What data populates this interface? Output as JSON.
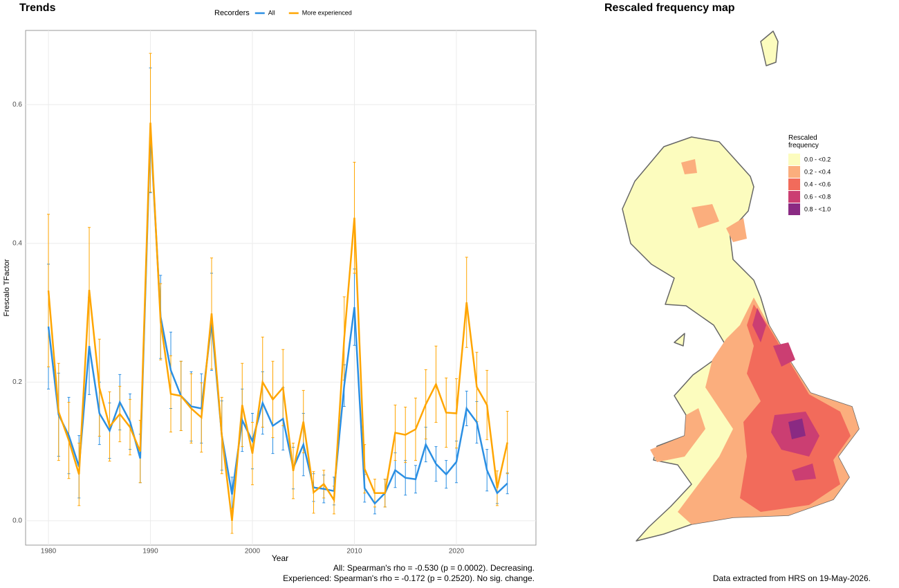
{
  "chart_data": [
    {
      "type": "line",
      "title": "Trends",
      "legend_title": "Recorders",
      "xlabel": "Year",
      "ylabel": "Frescalo TFactor",
      "x": [
        1980,
        1981,
        1982,
        1983,
        1984,
        1985,
        1986,
        1987,
        1988,
        1989,
        1990,
        1991,
        1992,
        1993,
        1994,
        1995,
        1996,
        1997,
        1998,
        1999,
        2000,
        2001,
        2002,
        2003,
        2004,
        2005,
        2006,
        2007,
        2008,
        2009,
        2010,
        2011,
        2012,
        2013,
        2014,
        2015,
        2016,
        2017,
        2018,
        2019,
        2020,
        2021,
        2022,
        2023,
        2024,
        2025
      ],
      "series": [
        {
          "name": "All",
          "color": "#2b8fe3",
          "values": [
            0.28,
            0.153,
            0.123,
            0.078,
            0.252,
            0.155,
            0.13,
            0.171,
            0.143,
            0.09,
            0.563,
            0.294,
            0.217,
            0.18,
            0.165,
            0.162,
            0.287,
            0.123,
            0.038,
            0.145,
            0.115,
            0.17,
            0.137,
            0.147,
            0.076,
            0.11,
            0.048,
            0.046,
            0.043,
            0.195,
            0.308,
            0.047,
            0.025,
            0.04,
            0.073,
            0.062,
            0.06,
            0.11,
            0.082,
            0.067,
            0.085,
            0.162,
            0.142,
            0.073,
            0.04,
            0.054
          ],
          "errors": [
            0.09,
            0.06,
            0.055,
            0.045,
            0.07,
            0.045,
            0.04,
            0.04,
            0.04,
            0.035,
            0.09,
            0.06,
            0.055,
            0.05,
            0.05,
            0.05,
            0.07,
            0.05,
            0.025,
            0.045,
            0.04,
            0.045,
            0.04,
            0.045,
            0.03,
            0.045,
            0.02,
            0.02,
            0.02,
            0.03,
            0.055,
            0.02,
            0.015,
            0.02,
            0.025,
            0.025,
            0.02,
            0.025,
            0.025,
            0.02,
            0.03,
            0.025,
            0.03,
            0.03,
            0.015,
            0.015
          ]
        },
        {
          "name": "More experienced",
          "color": "#ffa500",
          "values": [
            0.332,
            0.157,
            0.116,
            0.067,
            0.333,
            0.192,
            0.136,
            0.154,
            0.135,
            0.1,
            0.574,
            0.287,
            0.183,
            0.18,
            0.162,
            0.149,
            0.299,
            0.123,
            0.0,
            0.167,
            0.097,
            0.2,
            0.175,
            0.192,
            0.072,
            0.143,
            0.041,
            0.053,
            0.03,
            0.263,
            0.437,
            0.075,
            0.04,
            0.04,
            0.127,
            0.124,
            0.132,
            0.168,
            0.197,
            0.156,
            0.155,
            0.315,
            0.193,
            0.167,
            0.047,
            0.113
          ],
          "errors": [
            0.11,
            0.07,
            0.055,
            0.045,
            0.09,
            0.07,
            0.05,
            0.04,
            0.04,
            0.045,
            0.1,
            0.055,
            0.055,
            0.05,
            0.05,
            0.05,
            0.08,
            0.055,
            0.018,
            0.06,
            0.045,
            0.065,
            0.055,
            0.055,
            0.04,
            0.045,
            0.03,
            0.02,
            0.02,
            0.06,
            0.08,
            0.035,
            0.02,
            0.02,
            0.04,
            0.04,
            0.045,
            0.05,
            0.055,
            0.05,
            0.05,
            0.065,
            0.05,
            0.05,
            0.025,
            0.045
          ]
        }
      ],
      "xlim": [
        1977.76,
        2027.8
      ],
      "xticks": [
        1980,
        1990,
        2000,
        2010,
        2020
      ],
      "ylim": [
        -0.035,
        0.707
      ],
      "yticks": [
        {
          "value": 0,
          "label": "0.0"
        },
        0.2,
        0.4,
        0.6
      ],
      "grid": true,
      "legend": "top",
      "annotations": [
        "All: Spearman's rho = -0.530 (p = 0.0002). Decreasing.",
        "Experienced: Spearman's rho = -0.172 (p = 0.2520). No sig. change."
      ]
    },
    {
      "type": "map",
      "title": "Rescaled frequency map",
      "legend_title": "Rescaled frequency",
      "legend": [
        {
          "label": "0.0 - <0.2",
          "color": "#fcfcbe"
        },
        {
          "label": "0.2 - <0.4",
          "color": "#fbae7d"
        },
        {
          "label": "0.4 - <0.6",
          "color": "#f26b5b"
        },
        {
          "label": "0.6 - <0.8",
          "color": "#cb3e72"
        },
        {
          "label": "0.8 - <1.0",
          "color": "#8a2a83"
        }
      ],
      "caption": "Data extracted from HRS on 19-May-2026."
    }
  ]
}
